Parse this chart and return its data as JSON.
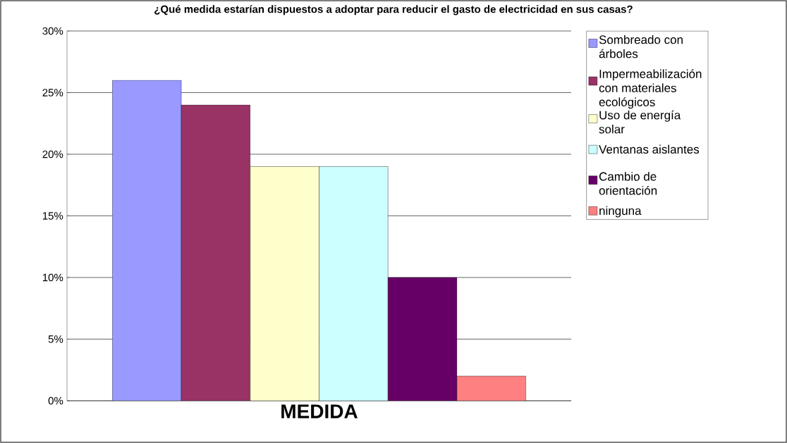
{
  "chart_data": {
    "type": "bar",
    "title": "¿Qué medida estarían dispuestos a adoptar para reducir el gasto de electricidad en sus casas?",
    "categories": [
      "MEDIDA"
    ],
    "series": [
      {
        "name": "Sombreado con árboles",
        "color": "#9999ff",
        "values": [
          26
        ]
      },
      {
        "name": "Impermeabilización con materiales ecológicos",
        "color": "#993366",
        "values": [
          24
        ]
      },
      {
        "name": "Uso de energía solar",
        "color": "#ffffcc",
        "values": [
          19
        ]
      },
      {
        "name": "Ventanas aislantes",
        "color": "#ccffff",
        "values": [
          19
        ]
      },
      {
        "name": "Cambio de orientación",
        "color": "#660066",
        "values": [
          10
        ]
      },
      {
        "name": "ninguna",
        "color": "#ff8080",
        "values": [
          2
        ]
      }
    ],
    "ylim": [
      0,
      30
    ],
    "yticks": [
      {
        "value": 0,
        "label": "0%"
      },
      {
        "value": 5,
        "label": "5%"
      },
      {
        "value": 10,
        "label": "10%"
      },
      {
        "value": 15,
        "label": "15%"
      },
      {
        "value": 20,
        "label": "20%"
      },
      {
        "value": 25,
        "label": "25%"
      },
      {
        "value": 30,
        "label": "30%"
      }
    ],
    "grid": "y",
    "legend": "right"
  }
}
